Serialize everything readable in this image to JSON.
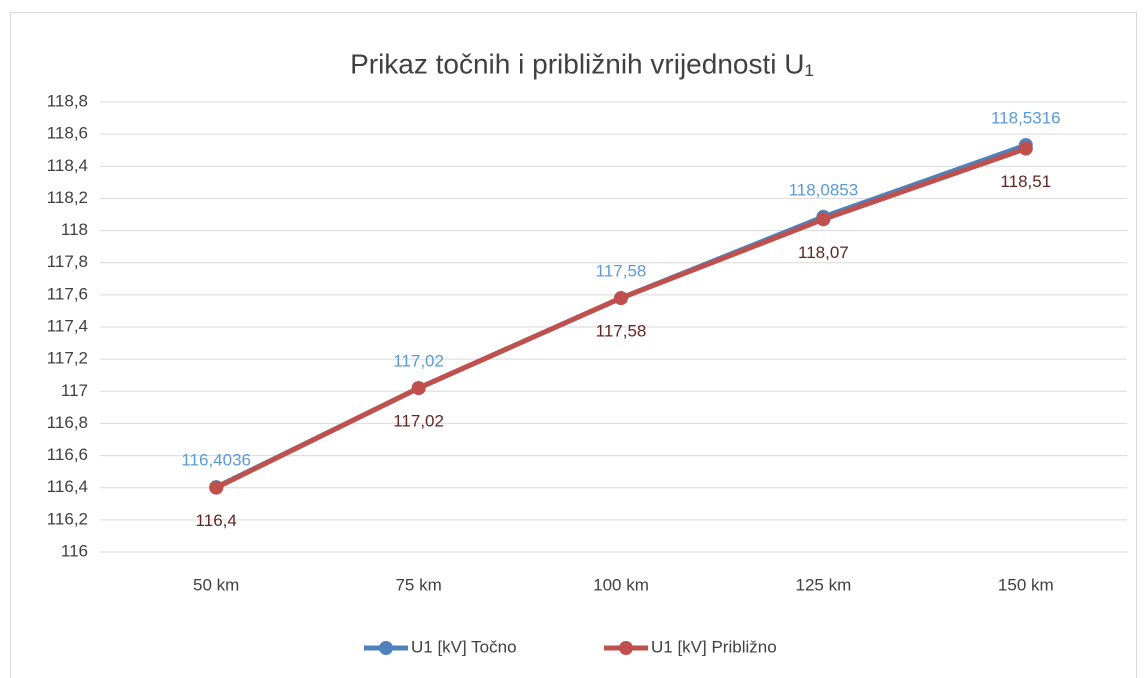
{
  "chart_data": {
    "type": "line",
    "title": "Prikaz točnih i približnih vrijednosti U₁",
    "categories": [
      "50 km",
      "75 km",
      "100 km",
      "125 km",
      "150 km"
    ],
    "series": [
      {
        "name": "U1 [kV] Točno",
        "color": "#4f81bd",
        "label_color": "#5b9bd5",
        "values": [
          116.4036,
          117.02,
          117.58,
          118.0853,
          118.5316
        ],
        "value_labels": [
          "116,4036",
          "117,02",
          "117,58",
          "118,0853",
          "118,5316"
        ]
      },
      {
        "name": "U1 [kV] Približno",
        "color": "#c0504d",
        "label_color": "#632523",
        "values": [
          116.4,
          117.02,
          117.58,
          118.07,
          118.51
        ],
        "value_labels": [
          "116,4",
          "117,02",
          "117,58",
          "118,07",
          "118,51"
        ]
      }
    ],
    "ylim": [
      116,
      118.8
    ],
    "yticks": [
      116,
      {
        "value": 116.2,
        "label": "116,2"
      },
      {
        "value": 116.4,
        "label": "116,4"
      },
      {
        "value": 116.6,
        "label": "116,6"
      },
      {
        "value": 116.8,
        "label": "116,8"
      },
      117,
      {
        "value": 117.2,
        "label": "117,2"
      },
      {
        "value": 117.4,
        "label": "117,4"
      },
      {
        "value": 117.6,
        "label": "117,6"
      },
      {
        "value": 117.8,
        "label": "117,8"
      },
      118,
      {
        "value": 118.2,
        "label": "118,2"
      },
      {
        "value": 118.4,
        "label": "118,4"
      },
      {
        "value": 118.6,
        "label": "118,6"
      },
      {
        "value": 118.8,
        "label": "118,8"
      }
    ],
    "grid": true,
    "legend": "bottom"
  }
}
